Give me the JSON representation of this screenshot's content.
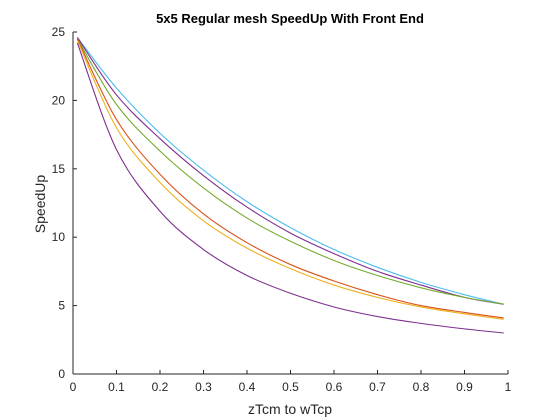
{
  "chart_data": {
    "type": "line",
    "title": "5x5 Regular mesh SpeedUp With Front End",
    "xlabel": "zTcm to wTcp",
    "ylabel": "SpeedUp",
    "xlim": [
      0,
      1
    ],
    "ylim": [
      0,
      25
    ],
    "xticks": [
      0,
      0.1,
      0.2,
      0.3,
      0.4,
      0.5,
      0.6,
      0.7,
      0.8,
      0.9,
      1
    ],
    "xtick_labels": [
      "0",
      "0.1",
      "0.2",
      "0.3",
      "0.4",
      "0.5",
      "0.6",
      "0.7",
      "0.8",
      "0.9",
      "1"
    ],
    "yticks": [
      0,
      5,
      10,
      15,
      20,
      25
    ],
    "ytick_labels": [
      "0",
      "5",
      "10",
      "15",
      "20",
      "25"
    ],
    "grid": false,
    "legend": "none",
    "series": [
      {
        "color": "#4DBEEE",
        "x": [
          0.01,
          0.1,
          0.2,
          0.3,
          0.4,
          0.5,
          0.6,
          0.7,
          0.8,
          0.9,
          0.99
        ],
        "values": [
          24.6,
          20.9,
          17.6,
          14.9,
          12.6,
          10.7,
          9.1,
          7.8,
          6.7,
          5.8,
          5.1
        ]
      },
      {
        "color": "#7E2F8E",
        "x": [
          0.01,
          0.1,
          0.2,
          0.3,
          0.4,
          0.5,
          0.6,
          0.7,
          0.8,
          0.9,
          0.99
        ],
        "values": [
          24.6,
          20.4,
          17.2,
          14.5,
          12.2,
          10.3,
          8.8,
          7.5,
          6.5,
          5.6,
          5.1
        ]
      },
      {
        "color": "#77AC30",
        "x": [
          0.01,
          0.1,
          0.2,
          0.3,
          0.4,
          0.5,
          0.6,
          0.7,
          0.8,
          0.9,
          0.99
        ],
        "values": [
          24.5,
          19.7,
          16.3,
          13.6,
          11.4,
          9.7,
          8.3,
          7.2,
          6.3,
          5.6,
          5.1
        ]
      },
      {
        "color": "#D95319",
        "x": [
          0.01,
          0.1,
          0.2,
          0.3,
          0.4,
          0.5,
          0.6,
          0.7,
          0.8,
          0.9,
          0.99
        ],
        "values": [
          24.5,
          18.6,
          14.6,
          11.7,
          9.6,
          8.0,
          6.8,
          5.8,
          5.0,
          4.5,
          4.1
        ]
      },
      {
        "color": "#EDB120",
        "x": [
          0.01,
          0.1,
          0.2,
          0.3,
          0.4,
          0.5,
          0.6,
          0.7,
          0.8,
          0.9,
          0.99
        ],
        "values": [
          24.4,
          18.0,
          14.0,
          11.2,
          9.2,
          7.7,
          6.5,
          5.6,
          4.9,
          4.4,
          4.0
        ]
      },
      {
        "color": "#7E2F8E",
        "x": [
          0.01,
          0.1,
          0.2,
          0.3,
          0.4,
          0.5,
          0.6,
          0.7,
          0.8,
          0.9,
          0.99
        ],
        "values": [
          24.2,
          16.4,
          11.9,
          9.1,
          7.2,
          5.9,
          4.9,
          4.2,
          3.7,
          3.3,
          3.0
        ]
      }
    ]
  }
}
